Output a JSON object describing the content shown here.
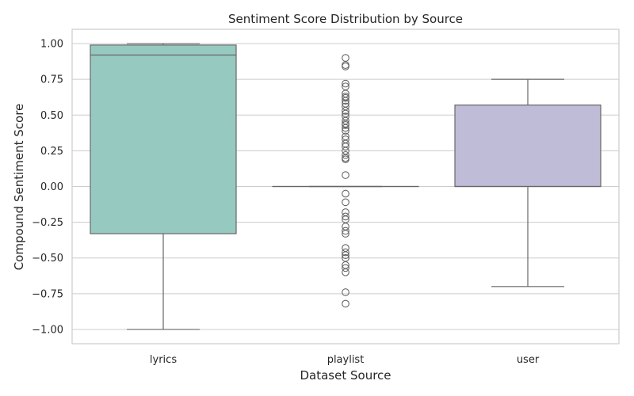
{
  "chart_data": {
    "type": "box",
    "title": "Sentiment Score Distribution by Source",
    "xlabel": "Dataset Source",
    "ylabel": "Compound Sentiment Score",
    "categories": [
      "lyrics",
      "playlist",
      "user"
    ],
    "ylim": [
      -1.1,
      1.1
    ],
    "yticks": [
      1.0,
      0.75,
      0.5,
      0.25,
      0.0,
      -0.25,
      -0.5,
      -0.75,
      -1.0
    ],
    "ytick_labels": [
      "1.00",
      "0.75",
      "0.50",
      "0.25",
      "0.00",
      "−0.25",
      "−0.50",
      "−0.75",
      "−1.00"
    ],
    "grid": true,
    "boxes": [
      {
        "category": "lyrics",
        "whisker_low": -1.0,
        "q1": -0.33,
        "median": 0.92,
        "q3": 0.99,
        "whisker_high": 1.0,
        "color": "#96c9c0",
        "outliers": []
      },
      {
        "category": "playlist",
        "whisker_low": 0.0,
        "q1": 0.0,
        "median": 0.0,
        "q3": 0.0,
        "whisker_high": 0.0,
        "color": "#f5f5b5",
        "outliers": [
          0.9,
          0.85,
          0.84,
          0.72,
          0.7,
          0.65,
          0.63,
          0.62,
          0.6,
          0.58,
          0.56,
          0.53,
          0.51,
          0.49,
          0.46,
          0.44,
          0.43,
          0.41,
          0.39,
          0.35,
          0.33,
          0.3,
          0.28,
          0.25,
          0.22,
          0.2,
          0.19,
          0.08,
          -0.05,
          -0.11,
          -0.18,
          -0.21,
          -0.23,
          -0.28,
          -0.31,
          -0.33,
          -0.43,
          -0.46,
          -0.48,
          -0.5,
          -0.55,
          -0.57,
          -0.6,
          -0.74,
          -0.82
        ]
      },
      {
        "category": "user",
        "whisker_low": -0.7,
        "q1": 0.0,
        "median": 0.0,
        "q3": 0.57,
        "whisker_high": 0.75,
        "color": "#bfbcd8",
        "outliers": []
      }
    ]
  }
}
